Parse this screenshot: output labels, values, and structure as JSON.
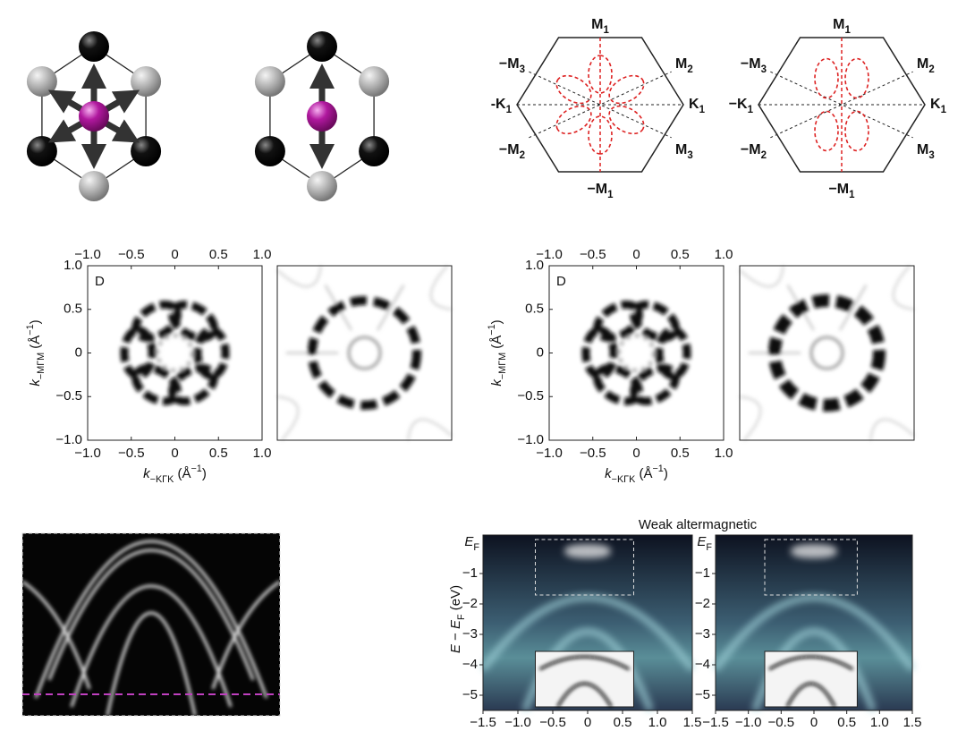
{
  "bz_diagrams": [
    {
      "labels": [
        {
          "text": "M",
          "sub": "1"
        },
        {
          "text": "M",
          "sub": "2"
        },
        {
          "text": "K",
          "sub": "1"
        },
        {
          "text": "M",
          "sub": "3"
        },
        {
          "text": "−M",
          "sub": "1"
        },
        {
          "text": "−M",
          "sub": "2"
        },
        {
          "text": "-K",
          "sub": "1"
        },
        {
          "text": "−M",
          "sub": "3"
        }
      ]
    },
    {
      "labels": [
        {
          "text": "M",
          "sub": "1"
        },
        {
          "text": "M",
          "sub": "2"
        },
        {
          "text": "K",
          "sub": "1"
        },
        {
          "text": "M",
          "sub": "3"
        },
        {
          "text": "−M",
          "sub": "1"
        },
        {
          "text": "−M",
          "sub": "2"
        },
        {
          "text": "−K",
          "sub": "1"
        },
        {
          "text": "−M",
          "sub": "3"
        }
      ]
    }
  ],
  "fermi_maps": [
    {
      "panel_label": "D",
      "top_ticks": [
        "−1.0",
        "−0.5",
        "0",
        "0.5",
        "1.0"
      ],
      "left_ticks": [
        "1.0",
        "0.5",
        "0",
        "−0.5",
        "−1.0"
      ],
      "bottom_ticks": [
        "−1.0",
        "−0.5",
        "0",
        "0.5",
        "1.0"
      ],
      "y_label": {
        "var": "k",
        "sub": "−MΓM",
        "unit": " (Å",
        "exp": "−1",
        "end": ")"
      },
      "x_label": {
        "var": "k",
        "sub": "−KΓK",
        "unit": " (Å",
        "exp": "−1",
        "end": ")"
      }
    },
    {
      "panel_label": "D",
      "top_ticks": [
        "−1.0",
        "−0.5",
        "0",
        "0.5",
        "1.0"
      ],
      "left_ticks": [
        "1.0",
        "0.5",
        "0",
        "−0.5",
        "−1.0"
      ],
      "bottom_ticks": [
        "−1.0",
        "−0.5",
        "0",
        "0.5",
        "1.0"
      ],
      "y_label": {
        "var": "k",
        "sub": "−MΓM",
        "unit": " (Å",
        "exp": "−1",
        "end": ")"
      },
      "x_label": {
        "var": "k",
        "sub": "−KΓK",
        "unit": " (Å",
        "exp": "−1",
        "end": ")"
      }
    }
  ],
  "band_maps": {
    "title": "Weak altermagnetic",
    "y_label": {
      "var": "E",
      "mid": " − ",
      "var2": "E",
      "sub": "F",
      "unit": " (eV)"
    },
    "panels": [
      {
        "ef_label": {
          "var": "E",
          "sub": "F"
        },
        "y_ticks": [
          "−1",
          "−2",
          "−3",
          "−4",
          "−5"
        ],
        "x_ticks": [
          "−1.5",
          "−1.0",
          "−0.5",
          "0",
          "0.5",
          "1.0",
          "1.5"
        ]
      },
      {
        "ef_label": {
          "var": "E",
          "sub": "F"
        },
        "y_ticks": [
          "−1",
          "−2",
          "−3",
          "−4",
          "−5"
        ],
        "x_ticks": [
          "−1.5",
          "−1.0",
          "−0.5",
          "0",
          "0.5",
          "1.0",
          "1.5"
        ]
      }
    ]
  }
}
